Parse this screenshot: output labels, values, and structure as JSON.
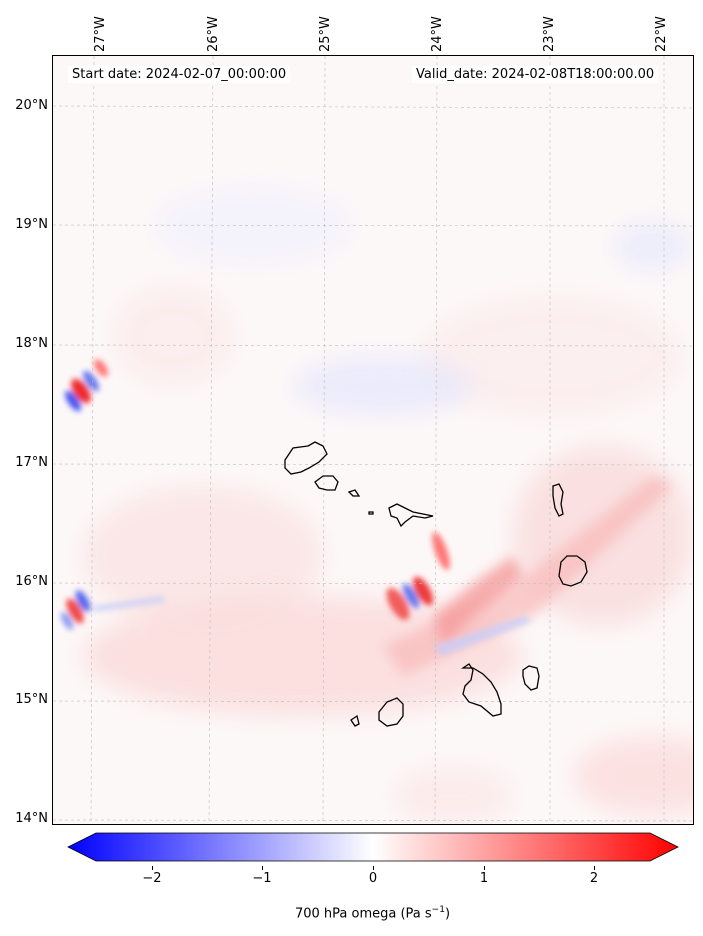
{
  "header": {
    "start_date": "Start date: 2024-02-07_00:00:00",
    "valid_date": "Valid_date: 2024-02-08T18:00:00.00"
  },
  "axes": {
    "longitude_labels": [
      "27°W",
      "26°W",
      "25°W",
      "24°W",
      "23°W",
      "22°W"
    ],
    "latitude_labels": [
      "20°N",
      "19°N",
      "18°N",
      "17°N",
      "16°N",
      "15°N",
      "14°N"
    ]
  },
  "colorbar": {
    "tick_labels": [
      "−2",
      "−1",
      "0",
      "1",
      "2"
    ],
    "title": "700 hPa omega (Pa s",
    "title_superscript": "−1",
    "title_suffix": ")",
    "range": [
      -2.6,
      2.6
    ],
    "colors": {
      "min": "#0000ff",
      "mid": "#ffffff",
      "max": "#ff0000"
    }
  },
  "colors": {
    "coastline": "#000000",
    "gridline": "#bbbbbb",
    "positive_omega": "#ff0000",
    "negative_omega": "#0000ff"
  }
}
